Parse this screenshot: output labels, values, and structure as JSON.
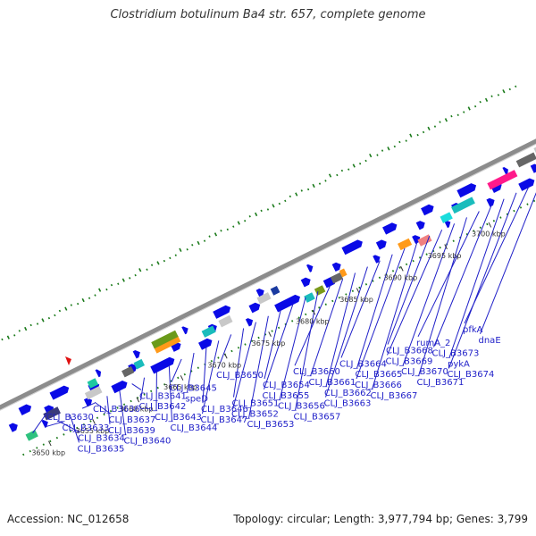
{
  "title": "Clostridium botulinum Ba4 str. 657, complete genome",
  "footer": {
    "accession": "Accession: NC_012658",
    "summary": "Topology: circular; Length: 3,977,794 bp; Genes: 3,799"
  },
  "colors": {
    "gene_arrow": "#0a0ae6",
    "label": "#1f1fc8",
    "backbone": "#8c8c8c",
    "gc_dots": "#1a7a1a",
    "origin_marker": "#e01010"
  },
  "scale_ticks": [
    {
      "label": "3650 kbp"
    },
    {
      "label": "3655 kbp"
    },
    {
      "label": "3660 kbp"
    },
    {
      "label": "3665 kbp"
    },
    {
      "label": "3670 kbp"
    },
    {
      "label": "3675 kbp"
    },
    {
      "label": "3680 kbp"
    },
    {
      "label": "3685 kbp"
    },
    {
      "label": "3690 kbp"
    },
    {
      "label": "3695 kbp"
    },
    {
      "label": "3700 kbp"
    }
  ],
  "gene_labels": [
    {
      "text": "CLJ_B3630"
    },
    {
      "text": "CLJ_B3633"
    },
    {
      "text": "CLJ_B3634"
    },
    {
      "text": "CLJ_B3635"
    },
    {
      "text": "CLJ_B3636"
    },
    {
      "text": "CLJ_B3637"
    },
    {
      "text": "CLJ_B3639"
    },
    {
      "text": "CLJ_B3640"
    },
    {
      "text": "CLJ_B3641"
    },
    {
      "text": "CLJ_B3642"
    },
    {
      "text": "CLJ_B3643"
    },
    {
      "text": "CLJ_B3644"
    },
    {
      "text": "CLJ_B3645"
    },
    {
      "text": "speD"
    },
    {
      "text": "CLJ_B3646"
    },
    {
      "text": "CLJ_B3647"
    },
    {
      "text": "CLJ_B3650"
    },
    {
      "text": "CLJ_B3651"
    },
    {
      "text": "CLJ_B3652"
    },
    {
      "text": "CLJ_B3653"
    },
    {
      "text": "CLJ_B3654"
    },
    {
      "text": "CLJ_B3655"
    },
    {
      "text": "CLJ_B3656"
    },
    {
      "text": "CLJ_B3657"
    },
    {
      "text": "CLJ_B3660"
    },
    {
      "text": "CLJ_B3661"
    },
    {
      "text": "CLJ_B3662"
    },
    {
      "text": "CLJ_B3663"
    },
    {
      "text": "CLJ_B3664"
    },
    {
      "text": "CLJ_B3665"
    },
    {
      "text": "CLJ_B3666"
    },
    {
      "text": "CLJ_B3667"
    },
    {
      "text": "CLJ_B3668"
    },
    {
      "text": "CLJ_B3669"
    },
    {
      "text": "CLJ_B3670"
    },
    {
      "text": "CLJ_B3671"
    },
    {
      "text": "rumA_2"
    },
    {
      "text": "CLJ_B3673"
    },
    {
      "text": "pykA"
    },
    {
      "text": "CLJ_B3674"
    },
    {
      "text": "pfkA"
    },
    {
      "text": "dnaE"
    }
  ]
}
